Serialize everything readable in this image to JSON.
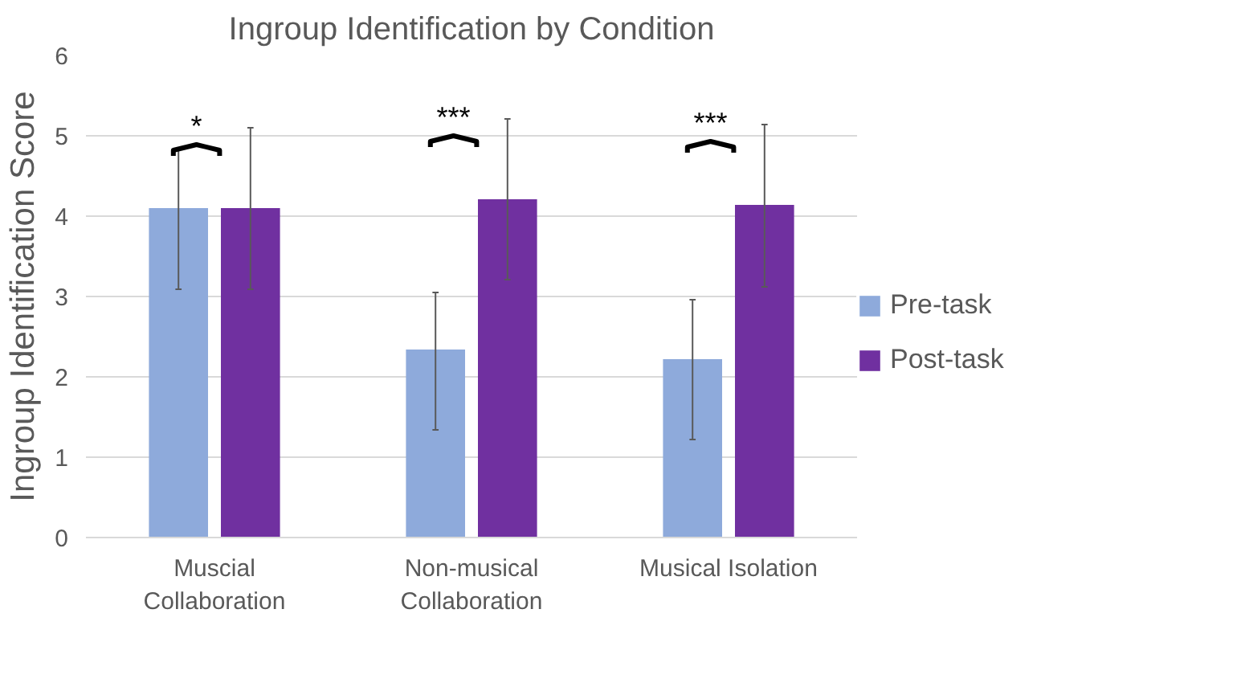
{
  "chart_data": {
    "type": "bar",
    "title": "Ingroup Identification by Condition",
    "ylabel": "Ingroup Identification Score",
    "categories": [
      "Muscial Collaboration",
      "Non-musical Collaboration",
      "Musical Isolation"
    ],
    "series": [
      {
        "name": "Pre-task",
        "color": "#8eaadb",
        "values": [
          4.1,
          2.34,
          2.22
        ],
        "errors": [
          [
            3.09,
            4.84
          ],
          [
            1.34,
            3.05
          ],
          [
            1.22,
            2.96
          ]
        ]
      },
      {
        "name": "Post-task",
        "color": "#7030a0",
        "values": [
          4.1,
          4.21,
          4.14
        ],
        "errors": [
          [
            3.09,
            5.1
          ],
          [
            3.21,
            5.21
          ],
          [
            3.12,
            5.14
          ]
        ]
      }
    ],
    "ylim": [
      0,
      6
    ],
    "yticks": [
      0,
      1,
      2,
      3,
      4,
      5,
      6
    ],
    "grid": "y",
    "legend": "right",
    "annotations": [
      "*",
      "***",
      "***"
    ]
  }
}
